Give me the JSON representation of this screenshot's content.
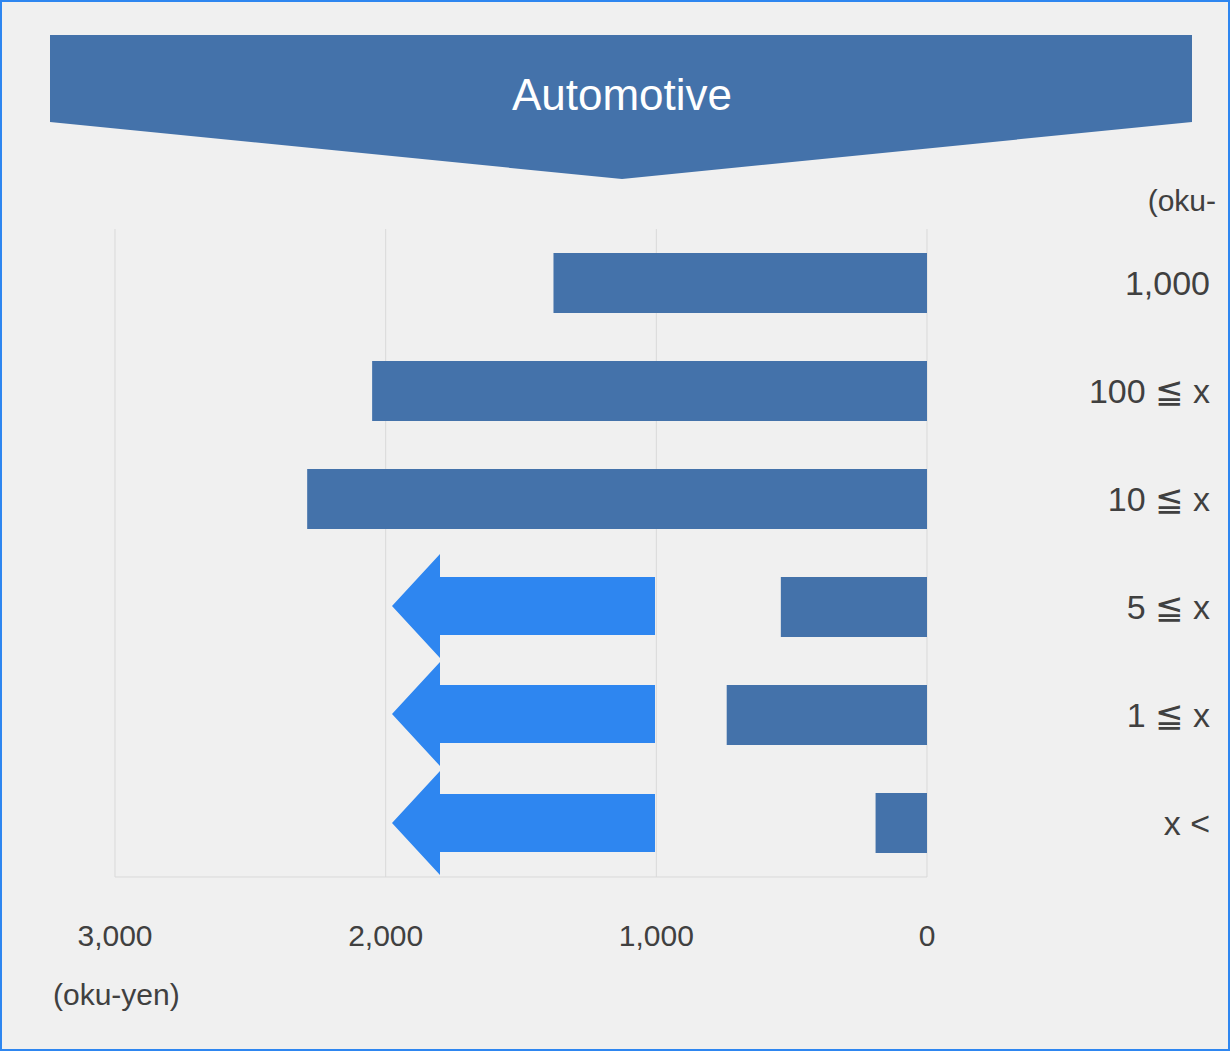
{
  "chart_data": {
    "type": "bar",
    "orientation": "horizontal",
    "title": "Automotive",
    "x_label": "(oku-yen)",
    "annotations": [
      "(oku-"
    ],
    "categories": [
      "1,000",
      "100 ≦ x",
      "10 ≦ x",
      "5 ≦ x",
      "1 ≦ x",
      "x <"
    ],
    "values": [
      1380,
      2050,
      2290,
      540,
      740,
      190
    ],
    "color": "#4472aa",
    "xlim": [
      0,
      3000
    ],
    "xticks": [
      0,
      {
        "value": 1000,
        "label": "1,000"
      },
      {
        "value": 2000,
        "label": "2,000"
      },
      {
        "value": 3000,
        "label": "3,000"
      }
    ],
    "grid": true
  }
}
